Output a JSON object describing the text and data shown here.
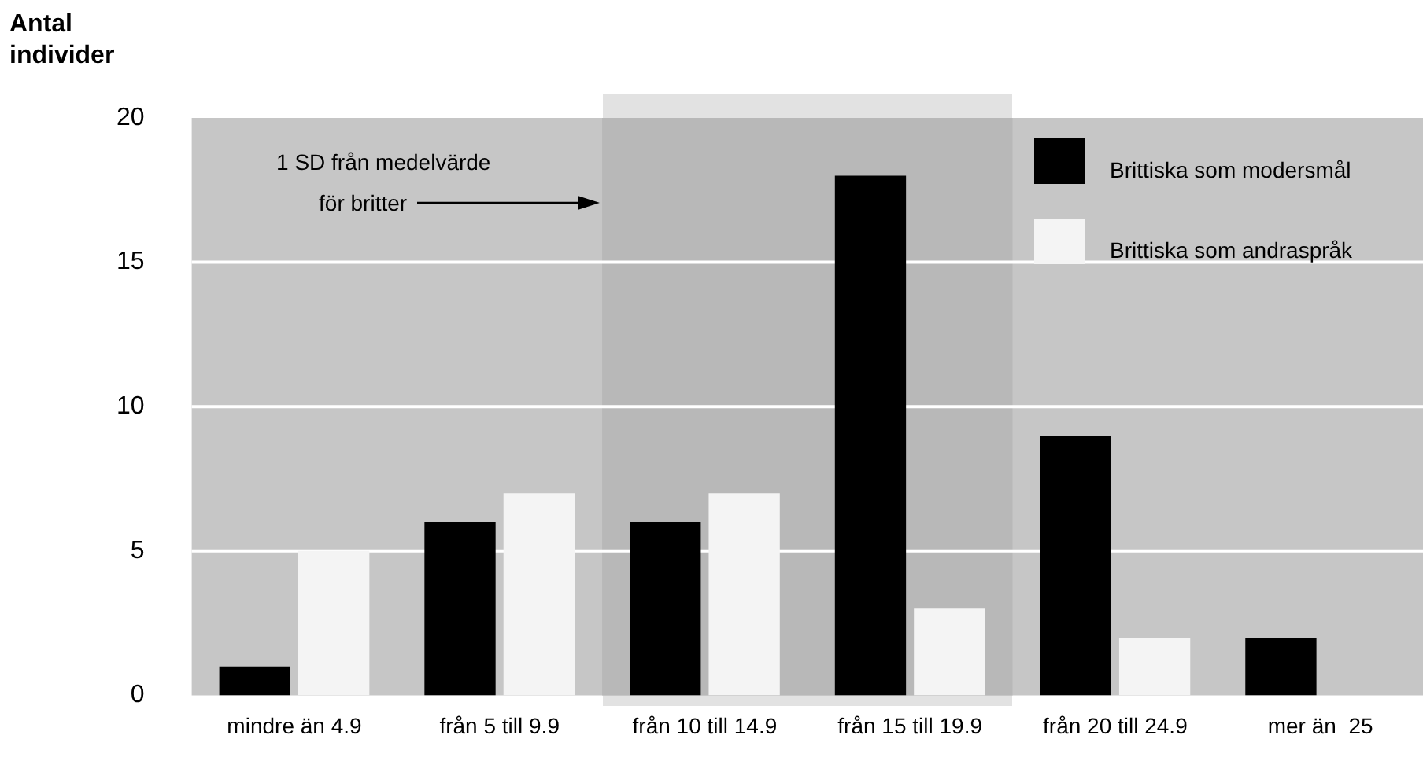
{
  "chart_data": {
    "type": "bar",
    "ylabel": "Antal\nindivider",
    "categories": [
      "mindre än 4.9",
      "från 5 till 9.9",
      "från 10 till 14.9",
      "från 15 till 19.9",
      "från 20 till 24.9",
      "mer än  25"
    ],
    "series": [
      {
        "name": "Brittiska som modersmål",
        "color": "#000000",
        "values": [
          1,
          6,
          6,
          18,
          9,
          2
        ]
      },
      {
        "name": "Brittiska som andraspråk",
        "color": "#f4f4f4",
        "values": [
          5,
          7,
          7,
          3,
          2,
          0
        ]
      }
    ],
    "ylim": [
      0,
      20
    ],
    "yticks": [
      0,
      5,
      10,
      15,
      20
    ],
    "grid": "y",
    "legend": "top right",
    "bands": [
      {
        "axis": "x",
        "from": "från 10 till 14.9",
        "to": "från 15 till 19.9",
        "color": "#b8b8b8"
      }
    ],
    "annotations": [
      "1 SD från medelvärde\nför britter"
    ]
  }
}
